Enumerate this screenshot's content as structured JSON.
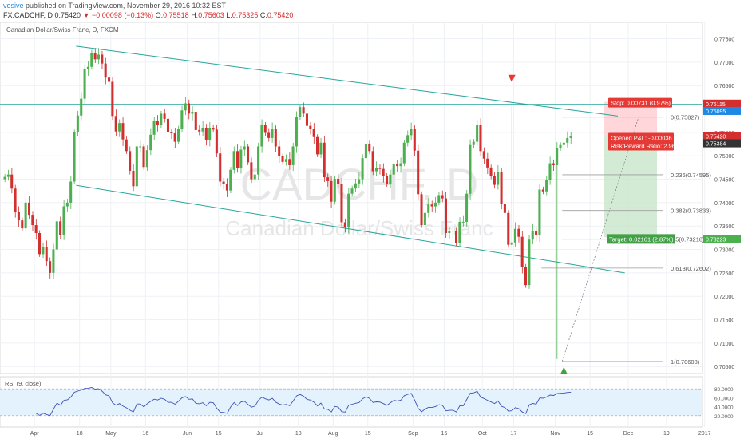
{
  "header": {
    "author": "vosive",
    "published_text": " published on TradingView.com, November 29, 2016 10:32 EST",
    "symbol": "FX:CADCHF, D",
    "last": "0.75420",
    "change": "−0.00098 (−0.13%)",
    "o_label": "O:",
    "o_value": "0.75518",
    "h_label": "H:",
    "h_value": "0.75603",
    "l_label": "L:",
    "l_value": "0.75325",
    "c_label": "C:",
    "c_value": "0.75420"
  },
  "chart_title": "Canadian Dollar/Swiss Franc, D, FXCM",
  "watermark": {
    "ticker": "CADCHF, D",
    "name": "Canadian Dollar/Swiss Franc"
  },
  "colors": {
    "up": "#4caf50",
    "down": "#d32f2f",
    "channel": "#26a69a",
    "resistance": "#26a69a",
    "price_line": "#ef5350",
    "rsi": "#3f51b5",
    "rsi_band": "#e3f2fd",
    "target_zone": "#c8e6c9",
    "stop_zone": "#ffcdd2"
  },
  "price_axis": {
    "labels": [
      "0.77500",
      "0.77000",
      "0.76500",
      "0.76000",
      "0.75500",
      "0.75000",
      "0.74500",
      "0.74000",
      "0.73500",
      "0.73000",
      "0.72500",
      "0.72000",
      "0.71500",
      "0.71000",
      "0.70500"
    ]
  },
  "price_tags": [
    {
      "text": "0.76115",
      "price": 0.76115,
      "color": "#d32f2f"
    },
    {
      "text": "0.76095",
      "price": 0.76095,
      "color": "#1e88e5"
    },
    {
      "text": "0.75420",
      "price": 0.7542,
      "color": "#d32f2f"
    },
    {
      "text": "0.75384",
      "price": 0.75384,
      "color": "#333333"
    },
    {
      "text": "0.73223",
      "price": 0.73223,
      "color": "#4caf50"
    }
  ],
  "time_axis": {
    "labels": [
      {
        "text": "Apr",
        "bar": 9
      },
      {
        "text": "18",
        "bar": 22
      },
      {
        "text": "May",
        "bar": 31
      },
      {
        "text": "16",
        "bar": 41
      },
      {
        "text": "Jun",
        "bar": 53
      },
      {
        "text": "15",
        "bar": 62
      },
      {
        "text": "Jul",
        "bar": 74
      },
      {
        "text": "18",
        "bar": 85
      },
      {
        "text": "Aug",
        "bar": 95
      },
      {
        "text": "15",
        "bar": 105
      },
      {
        "text": "Sep",
        "bar": 118
      },
      {
        "text": "15",
        "bar": 127
      },
      {
        "text": "Oct",
        "bar": 138
      },
      {
        "text": "17",
        "bar": 147
      },
      {
        "text": "Nov",
        "bar": 159
      },
      {
        "text": "15",
        "bar": 169
      },
      {
        "text": "Dec",
        "bar": 180
      },
      {
        "text": "19",
        "bar": 191
      },
      {
        "text": "2017",
        "bar": 202
      }
    ]
  },
  "fib_levels": [
    {
      "text": "0(0.75827)",
      "price": 0.75827
    },
    {
      "text": "0.236(0.74595)",
      "price": 0.74595
    },
    {
      "text": "0.382(0.73833)",
      "price": 0.73833
    },
    {
      "text": "0.5(0.73218)",
      "price": 0.73218
    },
    {
      "text": "0.618(0.72602)",
      "price": 0.72602
    },
    {
      "text": "1(0.70608)",
      "price": 0.70608
    }
  ],
  "position": {
    "stop_text": "Stop: 0.00731 (0.97%)",
    "target_text": "Target: 0.02161 (2.87%)",
    "pnl_text": "Opened P&L: -0.00036",
    "rr_text": "Risk/Reward Ratio: 2.96"
  },
  "rsi": {
    "title": "RSI (9, close)",
    "labels": [
      "80.0000",
      "60.0000",
      "40.0000",
      "20.0000"
    ],
    "upper": 80,
    "lower": 20
  },
  "chart_data": {
    "type": "candlestick",
    "title": "Canadian Dollar/Swiss Franc, D, FXCM",
    "ylim": [
      0.7035,
      0.7785
    ],
    "x_range": [
      "2016-03-24",
      "2017-01-04"
    ],
    "ohlc_close_path": [
      0.7455,
      0.746,
      0.743,
      0.738,
      0.7362,
      0.7345,
      0.74,
      0.7374,
      0.7352,
      0.7335,
      0.729,
      0.7305,
      0.7275,
      0.725,
      0.73,
      0.736,
      0.733,
      0.7392,
      0.74,
      0.7445,
      0.755,
      0.7586,
      0.7622,
      0.7685,
      0.769,
      0.772,
      0.7706,
      0.7716,
      0.7697,
      0.7667,
      0.7658,
      0.7585,
      0.7552,
      0.757,
      0.7535,
      0.751,
      0.7468,
      0.7435,
      0.752,
      0.752,
      0.7476,
      0.7512,
      0.7545,
      0.7575,
      0.7566,
      0.759,
      0.7579,
      0.755,
      0.7548,
      0.753,
      0.7558,
      0.7597,
      0.7612,
      0.759,
      0.7594,
      0.7555,
      0.7552,
      0.756,
      0.7534,
      0.756,
      0.7556,
      0.7505,
      0.7445,
      0.744,
      0.7426,
      0.747,
      0.751,
      0.7474,
      0.7513,
      0.752,
      0.7486,
      0.745,
      0.746,
      0.752,
      0.7566,
      0.7549,
      0.7538,
      0.7557,
      0.752,
      0.7499,
      0.7487,
      0.7493,
      0.748,
      0.752,
      0.7583,
      0.7604,
      0.759,
      0.7564,
      0.7558,
      0.754,
      0.7503,
      0.7528,
      0.7454,
      0.7446,
      0.7402,
      0.7451,
      0.7439,
      0.7358,
      0.7348,
      0.7419,
      0.743,
      0.7441,
      0.745,
      0.7495,
      0.7526,
      0.751,
      0.7467,
      0.7474,
      0.7472,
      0.7457,
      0.744,
      0.746,
      0.7483,
      0.7478,
      0.7484,
      0.7528,
      0.7544,
      0.7557,
      0.7511,
      0.7418,
      0.7352,
      0.7378,
      0.7396,
      0.7392,
      0.74,
      0.7416,
      0.7409,
      0.7335,
      0.7339,
      0.734,
      0.7313,
      0.7359,
      0.7359,
      0.7419,
      0.7523,
      0.753,
      0.7566,
      0.751,
      0.7494,
      0.7475,
      0.7456,
      0.7438,
      0.7466,
      0.7398,
      0.7378,
      0.731,
      0.7315,
      0.7344,
      0.7327,
      0.7263,
      0.7224,
      0.7321,
      0.734,
      0.733,
      0.7428,
      0.7424,
      0.7448,
      0.7484,
      0.748,
      0.7517,
      0.7523,
      0.7528,
      0.7538,
      0.7542
    ],
    "series": [
      {
        "name": "RSI (9, close)",
        "ylim": [
          0,
          100
        ]
      }
    ],
    "annotations": [
      "0(0.75827)",
      "0.236(0.74595)",
      "0.382(0.73833)",
      "0.5(0.73218)",
      "0.618(0.72602)",
      "1(0.70608)",
      "Stop: 0.00731 (0.97%)",
      "Target: 0.02161 (2.87%)"
    ]
  }
}
